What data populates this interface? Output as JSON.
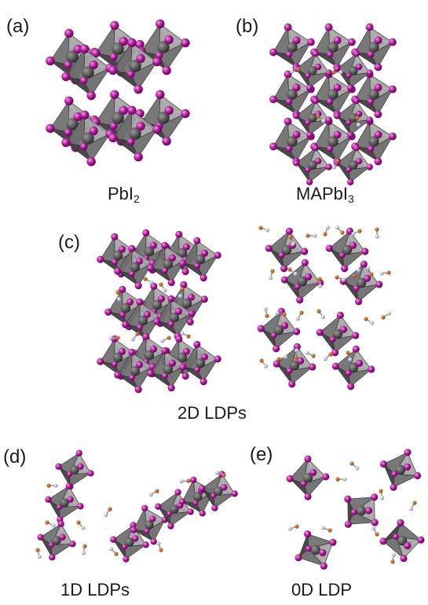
{
  "panels": {
    "a": {
      "tag": "(a)",
      "caption_main": "PbI",
      "caption_sub": "2"
    },
    "b": {
      "tag": "(b)",
      "caption_main": "MAPbI",
      "caption_sub": "3"
    },
    "c": {
      "tag": "(c)",
      "caption": "2D LDPs"
    },
    "d": {
      "tag": "(d)",
      "caption": "1D LDPs"
    },
    "e": {
      "tag": "(e)",
      "caption": "0D LDP"
    }
  },
  "colors": {
    "octahedron_dark": "#3f3f3f",
    "octahedron_mid": "#6e6e6e",
    "octahedron_light": "#a3a3a3",
    "iodide_atom": "#b0199a",
    "lead_atom": "#555555",
    "carbon_atom": "#b5651d",
    "nitrogen_atom": "#b9bfe0"
  }
}
